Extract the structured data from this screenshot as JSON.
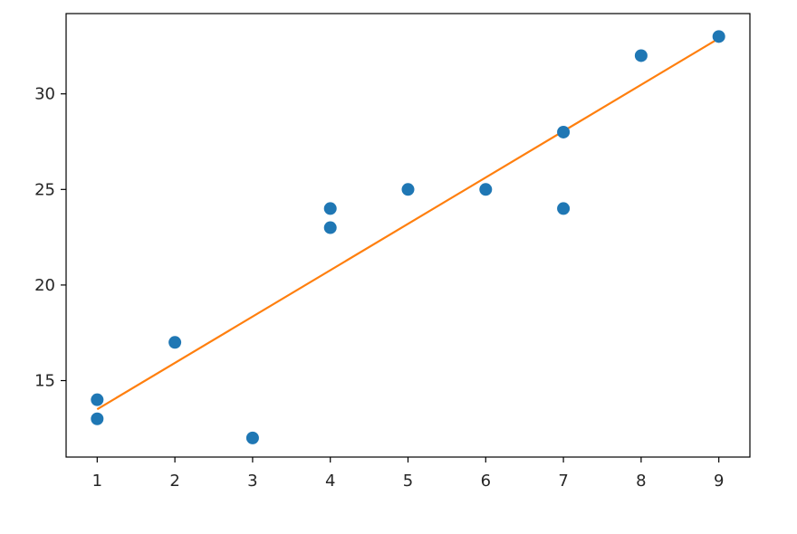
{
  "chart_data": {
    "type": "scatter",
    "title": "",
    "xlabel": "",
    "ylabel": "",
    "xlim": [
      0.6,
      9.4
    ],
    "ylim": [
      11.0,
      34.2
    ],
    "xticks": [
      1,
      2,
      3,
      4,
      5,
      6,
      7,
      8,
      9
    ],
    "yticks": [
      15,
      20,
      25,
      30
    ],
    "grid": false,
    "legend": "none",
    "series": [
      {
        "kind": "scatter",
        "color": "#1f77b4",
        "points": [
          {
            "x": 1,
            "y": 14
          },
          {
            "x": 1,
            "y": 13
          },
          {
            "x": 2,
            "y": 17
          },
          {
            "x": 3,
            "y": 12
          },
          {
            "x": 4,
            "y": 24
          },
          {
            "x": 4,
            "y": 23
          },
          {
            "x": 5,
            "y": 25
          },
          {
            "x": 6,
            "y": 25
          },
          {
            "x": 7,
            "y": 28
          },
          {
            "x": 7,
            "y": 24
          },
          {
            "x": 8,
            "y": 32
          },
          {
            "x": 9,
            "y": 33
          }
        ]
      },
      {
        "kind": "line",
        "color": "#ff7f0e",
        "points": [
          {
            "x": 1,
            "y": 13.5
          },
          {
            "x": 9,
            "y": 32.9
          }
        ]
      }
    ]
  }
}
